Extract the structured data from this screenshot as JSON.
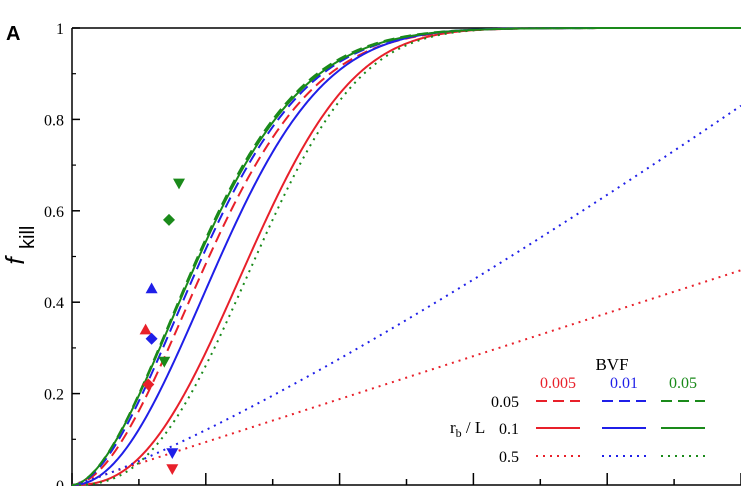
{
  "chart_data": {
    "type": "line",
    "panel_label": "A",
    "ylabel_main": "f",
    "ylabel_sub": "kill",
    "xlabel": "",
    "ylim": [
      0,
      1
    ],
    "xlim": [
      0,
      10
    ],
    "y_ticks": [
      "0",
      "0.2",
      "0.4",
      "0.6",
      "0.8",
      "1"
    ],
    "grid": false,
    "legend": {
      "placement": "bottom-right",
      "column_title": "BVF",
      "row_title_main": "r",
      "row_title_sub": "b",
      "row_title_rest": " / L",
      "columns": [
        {
          "label": "0.005",
          "color": "#e8202a"
        },
        {
          "label": "0.01",
          "color": "#1f1fe8"
        },
        {
          "label": "0.05",
          "color": "#1a8a1a"
        }
      ],
      "rows": [
        {
          "label": "0.05",
          "dash": "dashed"
        },
        {
          "label": "0.1",
          "dash": "solid"
        },
        {
          "label": "0.5",
          "dash": "dotted"
        }
      ]
    },
    "series": [
      {
        "bvf": "0.005",
        "rb_L": "0.05",
        "color": "#e8202a",
        "dash": "dashed",
        "x_half": 2.05,
        "rise": 0.95
      },
      {
        "bvf": "0.01",
        "rb_L": "0.05",
        "color": "#1f1fe8",
        "dash": "dashed",
        "x_half": 1.95,
        "rise": 0.92
      },
      {
        "bvf": "0.05",
        "rb_L": "0.05",
        "color": "#1a8a1a",
        "dash": "dashed",
        "x_half": 1.88,
        "rise": 0.9
      },
      {
        "bvf": "0.005",
        "rb_L": "0.1",
        "color": "#e8202a",
        "dash": "solid",
        "x_half": 2.65,
        "rise": 1.25
      },
      {
        "bvf": "0.01",
        "rb_L": "0.1",
        "color": "#1f1fe8",
        "dash": "solid",
        "x_half": 2.22,
        "rise": 1.05
      },
      {
        "bvf": "0.05",
        "rb_L": "0.1",
        "color": "#1a8a1a",
        "dash": "solid",
        "x_half": 1.9,
        "rise": 0.9
      },
      {
        "bvf": "0.005",
        "rb_L": "0.5",
        "color": "#e8202a",
        "dash": "dotted",
        "curve": "linear",
        "y_at_xmax": 0.47
      },
      {
        "bvf": "0.01",
        "rb_L": "0.5",
        "color": "#1f1fe8",
        "dash": "dotted",
        "curve": "power",
        "y_at_xmax": 0.83,
        "exponent": 1.2
      },
      {
        "bvf": "0.05",
        "rb_L": "0.5",
        "color": "#1a8a1a",
        "dash": "dotted",
        "x_half": 2.75,
        "rise": 1.3
      }
    ],
    "markers": [
      {
        "shape": "triangle-up",
        "color": "#e8202a",
        "x": 1.1,
        "y": 0.34
      },
      {
        "shape": "diamond",
        "color": "#e8202a",
        "x": 1.14,
        "y": 0.22
      },
      {
        "shape": "triangle-up",
        "color": "#1f1fe8",
        "x": 1.19,
        "y": 0.43
      },
      {
        "shape": "diamond",
        "color": "#1f1fe8",
        "x": 1.19,
        "y": 0.32
      },
      {
        "shape": "diamond",
        "color": "#1a8a1a",
        "x": 1.45,
        "y": 0.58
      },
      {
        "shape": "triangle-down",
        "color": "#1a8a1a",
        "x": 1.6,
        "y": 0.66
      },
      {
        "shape": "triangle-down",
        "color": "#1a8a1a",
        "x": 1.38,
        "y": 0.27
      },
      {
        "shape": "triangle-down",
        "color": "#1f1fe8",
        "x": 1.5,
        "y": 0.07
      },
      {
        "shape": "triangle-down",
        "color": "#e8202a",
        "x": 1.5,
        "y": 0.035
      }
    ]
  }
}
